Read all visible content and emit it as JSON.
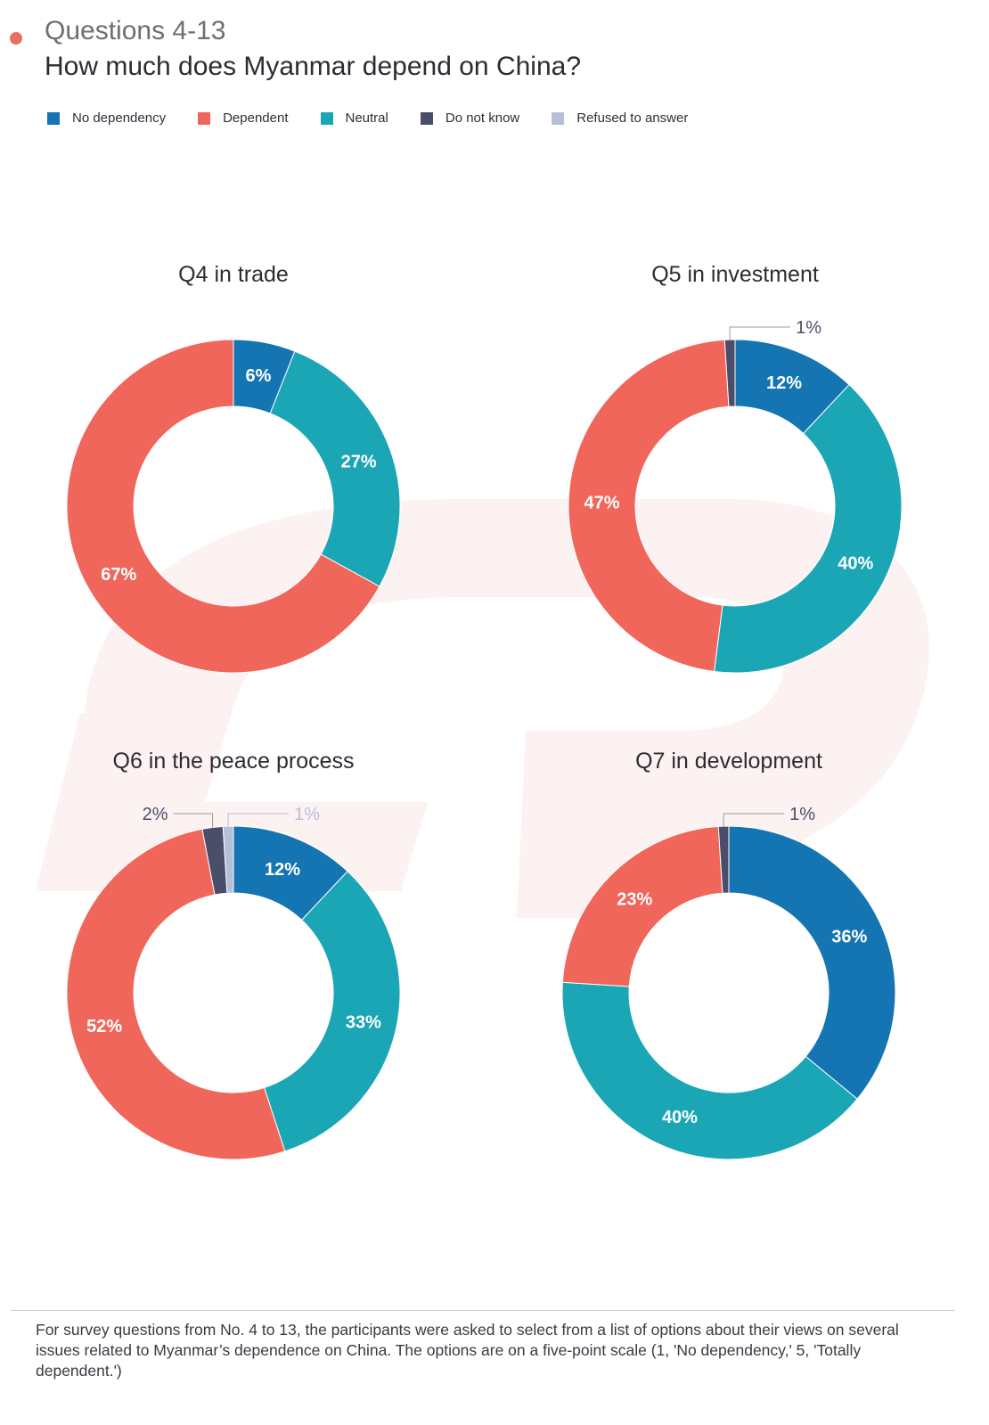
{
  "header": {
    "kicker": "Questions 4-13",
    "title": "How much does Myanmar depend on China?"
  },
  "legend": [
    {
      "label": "No dependency",
      "color": "#1475b2"
    },
    {
      "label": "Dependent",
      "color": "#f0665a"
    },
    {
      "label": "Neutral",
      "color": "#1ba6b6"
    },
    {
      "label": "Do not know",
      "color": "#4a4e6a"
    },
    {
      "label": "Refused to answer",
      "color": "#b5bfd8"
    }
  ],
  "colors": {
    "No dependency": "#1475b2",
    "Dependent": "#f0665a",
    "Neutral": "#1ba6b6",
    "Do not know": "#4a4e6a",
    "Refused to answer": "#b5bfd8",
    "watermark": "#fdf2f2"
  },
  "chart_data": [
    {
      "type": "pie",
      "donut": true,
      "title": "Q4 in trade",
      "series": [
        {
          "name": "No dependency",
          "value": 6,
          "label": "6%"
        },
        {
          "name": "Neutral",
          "value": 27,
          "label": "27%"
        },
        {
          "name": "Dependent",
          "value": 67,
          "label": "67%"
        }
      ]
    },
    {
      "type": "pie",
      "donut": true,
      "title": "Q5 in investment",
      "series": [
        {
          "name": "No dependency",
          "value": 12,
          "label": "12%"
        },
        {
          "name": "Neutral",
          "value": 40,
          "label": "40%"
        },
        {
          "name": "Dependent",
          "value": 47,
          "label": "47%"
        },
        {
          "name": "Do not know",
          "value": 1,
          "label": "1%"
        }
      ]
    },
    {
      "type": "pie",
      "donut": true,
      "title": "Q6 in the peace process",
      "series": [
        {
          "name": "No dependency",
          "value": 12,
          "label": "12%"
        },
        {
          "name": "Neutral",
          "value": 33,
          "label": "33%"
        },
        {
          "name": "Dependent",
          "value": 52,
          "label": "52%"
        },
        {
          "name": "Do not know",
          "value": 2,
          "label": "2%"
        },
        {
          "name": "Refused to answer",
          "value": 1,
          "label": "1%"
        }
      ]
    },
    {
      "type": "pie",
      "donut": true,
      "title": "Q7 in development",
      "series": [
        {
          "name": "No dependency",
          "value": 36,
          "label": "36%"
        },
        {
          "name": "Neutral",
          "value": 40,
          "label": "40%"
        },
        {
          "name": "Dependent",
          "value": 23,
          "label": "23%"
        },
        {
          "name": "Do not know",
          "value": 1,
          "label": "1%"
        }
      ]
    }
  ],
  "footnote": "For survey questions from No. 4 to 13, the participants were asked to select from a list of options about their views on several issues related to Myanmar’s dependence on China. The options are on a five-point scale (1, 'No dependency,' 5, 'Totally dependent.')"
}
